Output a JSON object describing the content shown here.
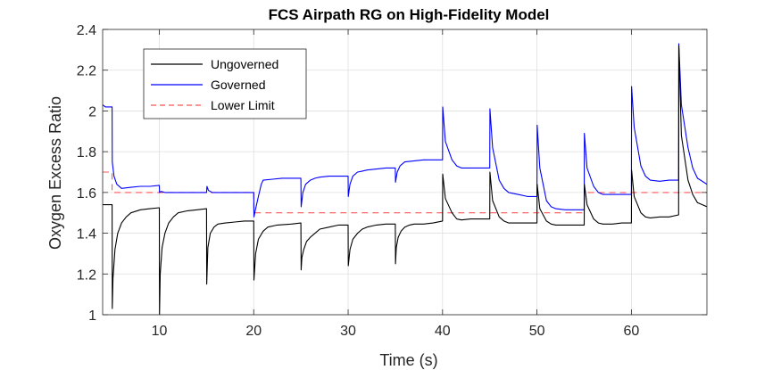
{
  "chart_data": {
    "type": "line",
    "title": "FCS Airpath RG on High-Fidelity Model",
    "xlabel": "Time (s)",
    "ylabel": "Oxygen Excess Ratio",
    "xlim": [
      4,
      68
    ],
    "ylim": [
      1,
      2.4
    ],
    "xticks": [
      10,
      20,
      30,
      40,
      50,
      60
    ],
    "yticks": [
      1,
      1.2,
      1.4,
      1.6,
      1.8,
      2,
      2.2,
      2.4
    ],
    "ytick_labels": [
      "1",
      "1.2",
      "1.4",
      "1.6",
      "1.8",
      "2",
      "2.2",
      "2.4"
    ],
    "grid": true,
    "legend_position": "top-left",
    "series": [
      {
        "name": "Ungoverned",
        "color": "#000000",
        "style": "solid",
        "x": [
          4,
          5,
          5.02,
          5.1,
          5.3,
          5.6,
          6,
          6.5,
          7,
          8,
          9,
          10,
          10.02,
          10.1,
          10.3,
          10.6,
          11,
          11.5,
          12,
          13,
          14,
          15,
          15.02,
          15.15,
          15.4,
          15.8,
          16.2,
          17,
          18,
          19,
          20,
          20.02,
          20.2,
          20.5,
          21,
          21.5,
          22.5,
          24,
          25,
          25.02,
          25.1,
          25.3,
          25.6,
          26,
          26.5,
          27,
          28,
          29,
          30,
          30.02,
          30.2,
          30.5,
          31,
          31.5,
          32,
          33,
          34,
          35,
          35.02,
          35.1,
          35.3,
          35.6,
          36,
          36.5,
          37,
          38,
          39,
          40,
          40.02,
          40.3,
          41,
          41.5,
          42,
          43,
          44,
          45,
          45.02,
          45.3,
          46,
          46.5,
          47,
          48,
          49,
          50,
          50.02,
          50.3,
          51,
          51.5,
          52,
          53,
          54,
          55,
          55.02,
          55.3,
          56,
          56.5,
          57,
          58,
          59,
          60,
          60.02,
          60.3,
          61,
          61.5,
          62,
          63,
          64,
          65,
          65.02,
          65.3,
          66,
          66.5,
          67,
          68
        ],
        "y": [
          1.54,
          1.54,
          1.03,
          1.18,
          1.32,
          1.4,
          1.45,
          1.48,
          1.5,
          1.515,
          1.52,
          1.525,
          1.0,
          1.2,
          1.33,
          1.4,
          1.45,
          1.48,
          1.5,
          1.51,
          1.515,
          1.52,
          1.15,
          1.33,
          1.4,
          1.43,
          1.445,
          1.45,
          1.455,
          1.46,
          1.46,
          1.17,
          1.3,
          1.37,
          1.41,
          1.43,
          1.44,
          1.445,
          1.45,
          1.22,
          1.28,
          1.32,
          1.36,
          1.38,
          1.4,
          1.42,
          1.43,
          1.44,
          1.44,
          1.24,
          1.32,
          1.37,
          1.4,
          1.42,
          1.43,
          1.44,
          1.445,
          1.445,
          1.25,
          1.33,
          1.38,
          1.41,
          1.43,
          1.44,
          1.445,
          1.445,
          1.45,
          1.46,
          1.69,
          1.57,
          1.5,
          1.47,
          1.465,
          1.47,
          1.47,
          1.47,
          1.7,
          1.56,
          1.48,
          1.46,
          1.45,
          1.45,
          1.45,
          1.45,
          1.64,
          1.52,
          1.46,
          1.445,
          1.44,
          1.44,
          1.44,
          1.44,
          1.64,
          1.54,
          1.47,
          1.45,
          1.445,
          1.445,
          1.45,
          1.45,
          1.71,
          1.58,
          1.5,
          1.48,
          1.475,
          1.48,
          1.48,
          1.49,
          2.32,
          1.88,
          1.66,
          1.59,
          1.55,
          1.53
        ]
      },
      {
        "name": "Governed",
        "color": "#0000ff",
        "style": "solid",
        "x": [
          4,
          4.3,
          4.6,
          5,
          5.02,
          5.2,
          5.5,
          6,
          7,
          8,
          9,
          10,
          10.02,
          10.2,
          10.6,
          11,
          12,
          13,
          14,
          15,
          15.05,
          15.2,
          15.4,
          15.6,
          16,
          17,
          18,
          19,
          20,
          20.02,
          20.2,
          20.5,
          20.8,
          21,
          22,
          23,
          24,
          25,
          25.02,
          25.2,
          25.5,
          26,
          26.5,
          27,
          28,
          29,
          30,
          30.02,
          30.2,
          30.5,
          31,
          31.5,
          32,
          33,
          34,
          35,
          35.02,
          35.2,
          35.5,
          36,
          37,
          38,
          39,
          40,
          40.02,
          40.3,
          41,
          41.5,
          42,
          43,
          44,
          45,
          45.02,
          45.3,
          46,
          46.5,
          47,
          48,
          49,
          50,
          50.02,
          50.3,
          51,
          51.5,
          52,
          53,
          54,
          55,
          55.02,
          55.3,
          56,
          56.5,
          57,
          58,
          59,
          60,
          60.02,
          60.3,
          61,
          61.5,
          62,
          63,
          64,
          65,
          65.02,
          65.3,
          66,
          66.5,
          67,
          68
        ],
        "y": [
          2.03,
          2.02,
          2.02,
          2.02,
          1.75,
          1.68,
          1.64,
          1.62,
          1.625,
          1.63,
          1.63,
          1.635,
          1.6,
          1.605,
          1.6,
          1.6,
          1.6,
          1.6,
          1.6,
          1.6,
          1.63,
          1.61,
          1.605,
          1.6,
          1.6,
          1.6,
          1.6,
          1.6,
          1.6,
          1.48,
          1.52,
          1.58,
          1.64,
          1.66,
          1.665,
          1.67,
          1.67,
          1.67,
          1.53,
          1.6,
          1.64,
          1.66,
          1.67,
          1.675,
          1.68,
          1.68,
          1.68,
          1.58,
          1.64,
          1.68,
          1.7,
          1.705,
          1.71,
          1.715,
          1.72,
          1.72,
          1.65,
          1.7,
          1.73,
          1.75,
          1.755,
          1.76,
          1.76,
          1.76,
          2.02,
          1.85,
          1.76,
          1.73,
          1.72,
          1.72,
          1.72,
          1.72,
          2.01,
          1.82,
          1.66,
          1.62,
          1.6,
          1.59,
          1.58,
          1.58,
          1.93,
          1.72,
          1.56,
          1.53,
          1.52,
          1.515,
          1.515,
          1.515,
          1.89,
          1.72,
          1.63,
          1.6,
          1.59,
          1.59,
          1.59,
          1.59,
          2.12,
          1.92,
          1.73,
          1.68,
          1.66,
          1.655,
          1.66,
          1.66,
          2.33,
          2.03,
          1.82,
          1.72,
          1.67,
          1.64
        ]
      },
      {
        "name": "Lower Limit",
        "color": "#ff5555",
        "style": "dashed",
        "x": [
          4,
          5,
          5,
          20,
          20,
          55,
          55,
          68
        ],
        "y": [
          1.7,
          1.7,
          1.6,
          1.6,
          1.5,
          1.5,
          1.6,
          1.6
        ]
      }
    ]
  }
}
